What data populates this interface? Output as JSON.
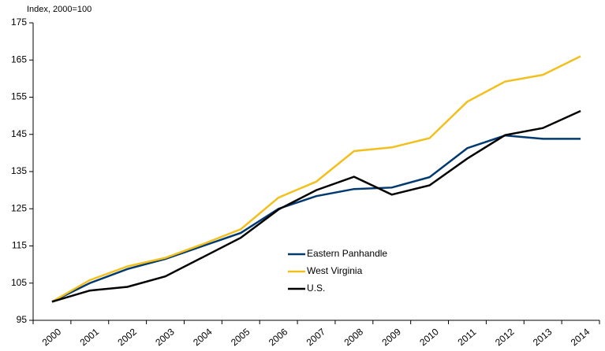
{
  "chart_data": {
    "type": "line",
    "y_label": "Index, 2000=100",
    "categories": [
      "2000",
      "2001",
      "2002",
      "2003",
      "2004",
      "2005",
      "2006",
      "2007",
      "2008",
      "2009",
      "2010",
      "2011",
      "2012",
      "2013",
      "2014"
    ],
    "series": [
      {
        "name": "Eastern Panhandle",
        "color": "#003a70",
        "values": [
          100,
          105,
          108.8,
          111.5,
          115,
          118.5,
          125,
          128.4,
          130.3,
          130.7,
          133.5,
          141.3,
          144.7,
          143.8,
          143.8
        ]
      },
      {
        "name": "West Virginia",
        "color": "#f2c01e",
        "values": [
          100,
          105.8,
          109.5,
          111.8,
          115.5,
          119.5,
          128,
          132.3,
          140.5,
          141.5,
          144,
          153.8,
          159.2,
          161,
          166
        ]
      },
      {
        "name": "U.S.",
        "color": "#000000",
        "values": [
          100,
          103,
          104,
          106.8,
          112,
          117.2,
          124.8,
          130,
          133.6,
          128.8,
          131.3,
          138.5,
          144.8,
          146.7,
          151.3
        ]
      }
    ],
    "ylim": [
      95,
      175
    ],
    "yticks": [
      95,
      105,
      115,
      125,
      135,
      145,
      155,
      165,
      175
    ],
    "grid": false,
    "legend": "center"
  }
}
